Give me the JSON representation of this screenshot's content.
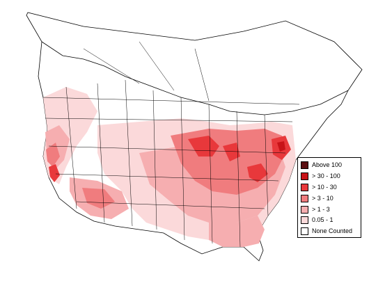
{
  "legend": {
    "items": [
      {
        "label": "Above 100",
        "color": "#5a0f12"
      },
      {
        "label": "> 30 - 100",
        "color": "#c81318"
      },
      {
        "label": "> 10 - 30",
        "color": "#e8383b"
      },
      {
        "label": "> 3 - 10",
        "color": "#f07c7e"
      },
      {
        "label": "> 1 - 3",
        "color": "#f6aeb0"
      },
      {
        "label": "0.05 - 1",
        "color": "#fbd9da"
      },
      {
        "label": "None Counted",
        "color": "#ffffff"
      }
    ]
  },
  "colors": {
    "not_surveyed": "#d9d9d9",
    "outline": "#000000"
  }
}
